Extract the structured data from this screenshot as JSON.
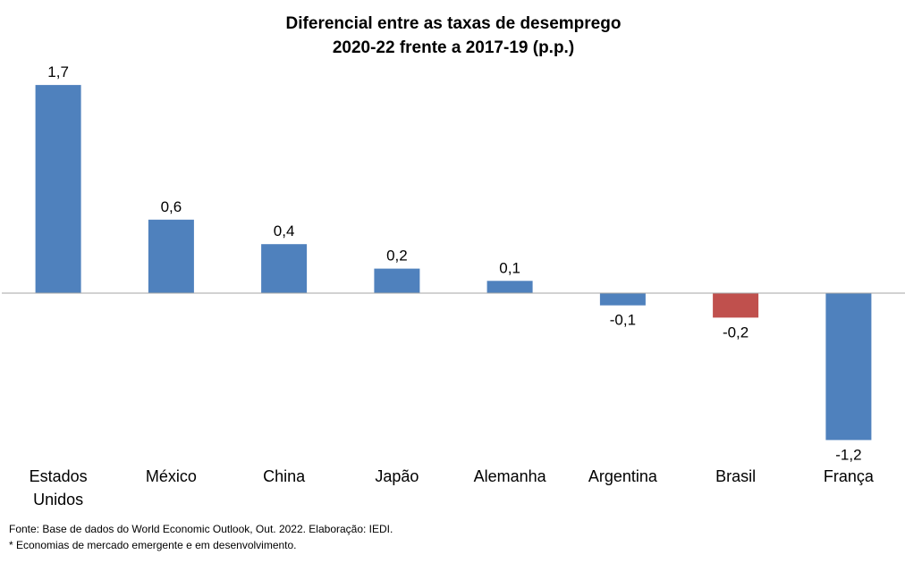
{
  "chart_data": {
    "type": "bar",
    "title": [
      "Diferencial entre as taxas de desemprego",
      "2020-22 frente a 2017-19 (p.p.)"
    ],
    "categories": [
      [
        "Estados",
        "Unidos"
      ],
      [
        "México"
      ],
      [
        "China"
      ],
      [
        "Japão"
      ],
      [
        "Alemanha"
      ],
      [
        "Argentina"
      ],
      [
        "Brasil"
      ],
      [
        "França"
      ]
    ],
    "values": [
      1.7,
      0.6,
      0.4,
      0.2,
      0.1,
      -0.1,
      -0.2,
      -1.2
    ],
    "data_labels": [
      "1,7",
      "0,6",
      "0,4",
      "0,2",
      "0,1",
      "-0,1",
      "-0,2",
      "-1,2"
    ],
    "bar_colors": [
      "#4f81bd",
      "#4f81bd",
      "#4f81bd",
      "#4f81bd",
      "#4f81bd",
      "#4f81bd",
      "#c0504d",
      "#4f81bd"
    ],
    "highlight": "Brasil",
    "ylim": [
      -1.5,
      2.0
    ],
    "grid": false,
    "legend": "none",
    "axes_visible": false,
    "zero_line_color": "#a6a6a6"
  },
  "footnotes": {
    "source": "Fonte: Base de dados do World Economic Outlook, Out. 2022.  Elaboração: IEDI.",
    "asterisk": "* Economias de mercado emergente e em desenvolvimento."
  }
}
